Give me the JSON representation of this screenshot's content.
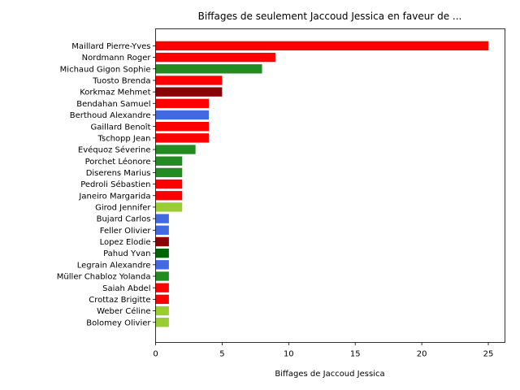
{
  "chart_data": {
    "type": "bar",
    "orientation": "horizontal",
    "title": "Biffages de seulement Jaccoud Jessica en faveur de ...",
    "xlabel": "Biffages de Jaccoud Jessica",
    "ylabel": "",
    "xlim": [
      0,
      26.25
    ],
    "xticks": [
      0,
      5,
      10,
      15,
      20,
      25
    ],
    "grid": false,
    "categories": [
      "Maillard Pierre-Yves",
      "Nordmann Roger",
      "Michaud Gigon Sophie",
      "Tuosto Brenda",
      "Korkmaz Mehmet",
      "Bendahan Samuel",
      "Berthoud Alexandre",
      "Gaillard Benoît",
      "Tschopp Jean",
      "Evéquoz Séverine",
      "Porchet Léonore",
      "Diserens Marius",
      "Pedroli Sébastien",
      "Janeiro Margarida",
      "Girod Jennifer",
      "Bujard Carlos",
      "Feller Olivier",
      "Lopez Elodie",
      "Pahud Yvan",
      "Legrain Alexandre",
      "Müller Chabloz Yolanda",
      "Saiah Abdel",
      "Crottaz Brigitte",
      "Weber Céline",
      "Bolomey Olivier"
    ],
    "values": [
      25,
      9,
      8,
      5,
      5,
      4,
      4,
      4,
      4,
      3,
      2,
      2,
      2,
      2,
      2,
      1,
      1,
      1,
      1,
      1,
      1,
      1,
      1,
      1,
      1
    ],
    "colors": [
      "#ff0000",
      "#ff0000",
      "#228b22",
      "#ff0000",
      "#8b0000",
      "#ff0000",
      "#4169e1",
      "#ff0000",
      "#ff0000",
      "#228b22",
      "#228b22",
      "#228b22",
      "#ff0000",
      "#ff0000",
      "#9acd32",
      "#4169e1",
      "#4169e1",
      "#8b0000",
      "#006400",
      "#4169e1",
      "#228b22",
      "#ff0000",
      "#ff0000",
      "#9acd32",
      "#9acd32"
    ]
  }
}
